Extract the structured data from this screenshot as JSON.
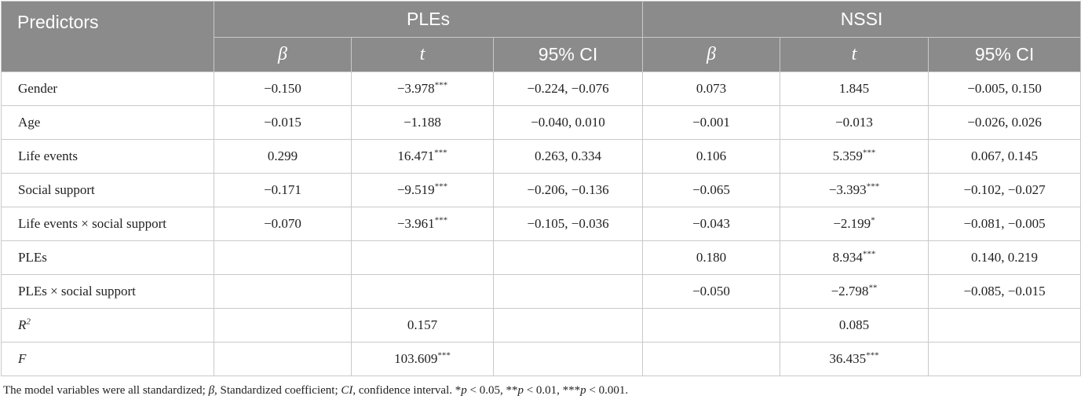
{
  "header": {
    "predictors": "Predictors",
    "groups": [
      "PLEs",
      "NSSI"
    ],
    "sub": [
      "β",
      "t",
      "95% CI",
      "β",
      "t",
      "95% CI"
    ]
  },
  "rows": [
    {
      "label": "Gender",
      "cells": [
        "−0.150",
        "−3.978***",
        "−0.224, −0.076",
        "0.073",
        "1.845",
        "−0.005, 0.150"
      ]
    },
    {
      "label": "Age",
      "cells": [
        "−0.015",
        "−1.188",
        "−0.040, 0.010",
        "−0.001",
        "−0.013",
        "−0.026, 0.026"
      ]
    },
    {
      "label": "Life events",
      "cells": [
        "0.299",
        "16.471***",
        "0.263, 0.334",
        "0.106",
        "5.359***",
        "0.067, 0.145"
      ]
    },
    {
      "label": "Social support",
      "cells": [
        "−0.171",
        "−9.519***",
        "−0.206, −0.136",
        "−0.065",
        "−3.393***",
        "−0.102, −0.027"
      ]
    },
    {
      "label": "Life events × social support",
      "cells": [
        "−0.070",
        "−3.961***",
        "−0.105, −0.036",
        "−0.043",
        "−2.199*",
        "−0.081, −0.005"
      ]
    },
    {
      "label": "PLEs",
      "cells": [
        "",
        "",
        "",
        "0.180",
        "8.934***",
        "0.140, 0.219"
      ]
    },
    {
      "label": "PLEs × social support",
      "cells": [
        "",
        "",
        "",
        "−0.050",
        "−2.798**",
        "−0.085, −0.015"
      ]
    },
    {
      "label": "R2",
      "cells": [
        "",
        "0.157",
        "",
        "",
        "0.085",
        ""
      ]
    },
    {
      "label": "F",
      "cells": [
        "",
        "103.609***",
        "",
        "",
        "36.435***",
        ""
      ]
    }
  ],
  "note": {
    "p1": "The model variables were all standardized; ",
    "beta": "β",
    "p2": ", Standardized coefficient; ",
    "ci": "CI",
    "p3": ", confidence interval. *",
    "p_1": "p",
    "p4": " < 0.05, **",
    "p_2": "p",
    "p5": " < 0.01, ***",
    "p_3": "p",
    "p6": " < 0.001."
  }
}
